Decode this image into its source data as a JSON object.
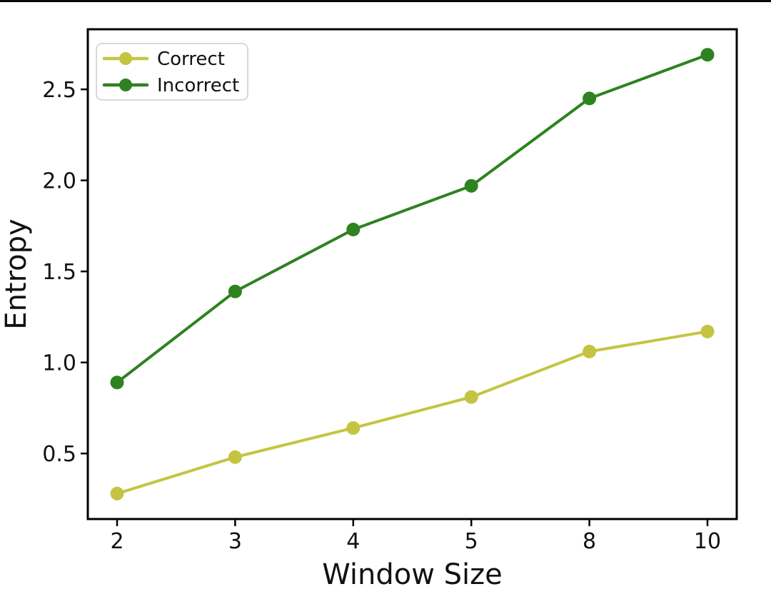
{
  "figure": {
    "background": "#ffffff",
    "top_edge_line_color": "#0a0a0a"
  },
  "chart_data": {
    "type": "line",
    "title": "",
    "xlabel": "Window Size",
    "ylabel": "Entropy",
    "categories": [
      "2",
      "3",
      "4",
      "5",
      "8",
      "10"
    ],
    "y_ticks": [
      0.5,
      1.0,
      1.5,
      2.0,
      2.5
    ],
    "ylim": [
      0.14,
      2.83
    ],
    "grid": false,
    "legend_position": "upper left",
    "axis_color": "#000000",
    "tick_label_color": "#111111",
    "legend_border_color": "#cccccc",
    "series": [
      {
        "name": "Correct",
        "color": "#c4c442",
        "values": [
          0.28,
          0.48,
          0.64,
          0.81,
          1.06,
          1.17
        ]
      },
      {
        "name": "Incorrect",
        "color": "#2e8220",
        "values": [
          0.89,
          1.39,
          1.73,
          1.97,
          2.45,
          2.69
        ]
      }
    ]
  }
}
